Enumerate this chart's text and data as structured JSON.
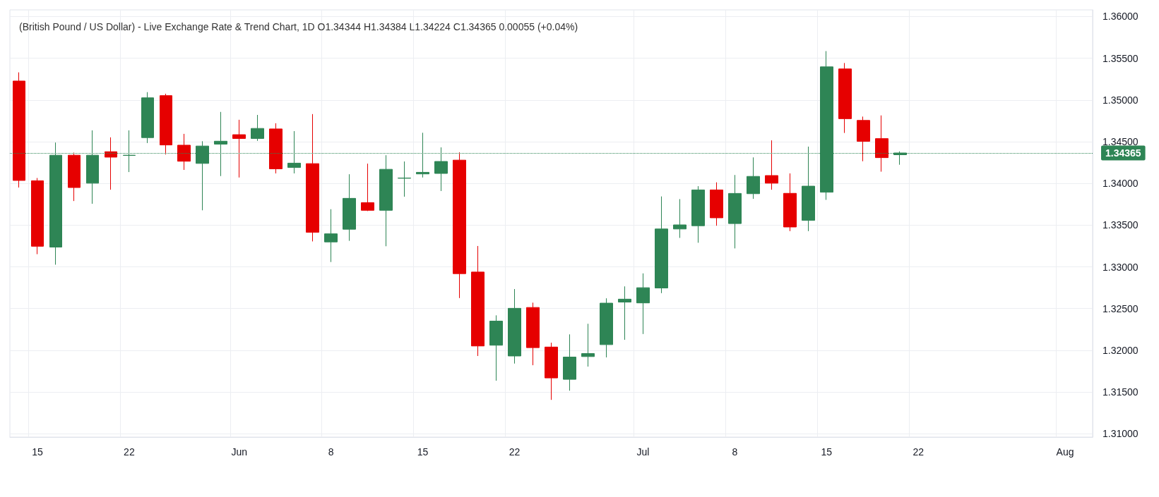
{
  "chart_data": {
    "type": "candlestick",
    "title": "(British Pound / US Dollar) - Live Exchange Rate & Trend Chart, 1D O1.34344 H1.34384 L1.34224 C1.34365 0.00055 (+0.04%)",
    "categories": [
      null,
      "15",
      null,
      null,
      null,
      null,
      "22",
      null,
      null,
      null,
      null,
      null,
      "Jun",
      null,
      null,
      null,
      null,
      "8",
      null,
      null,
      null,
      null,
      "15",
      null,
      null,
      null,
      null,
      "22",
      null,
      null,
      null,
      null,
      null,
      null,
      "Jul",
      null,
      null,
      null,
      null,
      "8",
      null,
      null,
      null,
      null,
      "15",
      null,
      null,
      null,
      null,
      "22",
      null,
      null,
      null,
      null,
      null,
      null,
      null,
      "Aug",
      null
    ],
    "ohlc": [
      [
        1.35227,
        1.35331,
        1.33951,
        1.34036
      ],
      [
        1.34032,
        1.34065,
        1.33152,
        1.33247
      ],
      [
        1.33237,
        1.3449,
        1.33026,
        1.34338
      ],
      [
        1.34338,
        1.3437,
        1.33789,
        1.33951
      ],
      [
        1.34003,
        1.34636,
        1.33756,
        1.34338
      ],
      [
        1.3438,
        1.34552,
        1.33925,
        1.34315
      ],
      [
        1.34335,
        1.34636,
        1.34136,
        1.34338
      ],
      [
        1.34549,
        1.35094,
        1.34484,
        1.35026
      ],
      [
        1.35052,
        1.35075,
        1.34347,
        1.34461
      ],
      [
        1.34458,
        1.34594,
        1.34162,
        1.34266
      ],
      [
        1.3424,
        1.34506,
        1.33678,
        1.34448
      ],
      [
        1.34471,
        1.34857,
        1.34088,
        1.34506
      ],
      [
        1.34584,
        1.34763,
        1.34071,
        1.34539
      ],
      [
        1.34539,
        1.34821,
        1.3451,
        1.34659
      ],
      [
        1.34653,
        1.34721,
        1.3412,
        1.34175
      ],
      [
        1.34191,
        1.34627,
        1.3412,
        1.34243
      ],
      [
        1.34237,
        1.34831,
        1.33305,
        1.33415
      ],
      [
        1.33299,
        1.33691,
        1.33058,
        1.33396
      ],
      [
        1.33451,
        1.3411,
        1.33312,
        1.33821
      ],
      [
        1.33769,
        1.34237,
        1.33669,
        1.33678
      ],
      [
        1.33678,
        1.34338,
        1.33247,
        1.34169
      ],
      [
        1.34062,
        1.34263,
        1.33841,
        1.34065
      ],
      [
        1.34114,
        1.34607,
        1.34071,
        1.34133
      ],
      [
        1.3412,
        1.34432,
        1.33909,
        1.34263
      ],
      [
        1.34279,
        1.34373,
        1.32626,
        1.32919
      ],
      [
        1.32938,
        1.3325,
        1.31932,
        1.32052
      ],
      [
        1.32061,
        1.32419,
        1.31636,
        1.3235
      ],
      [
        1.31932,
        1.32734,
        1.31841,
        1.32503
      ],
      [
        1.32513,
        1.32571,
        1.31821,
        1.32032
      ],
      [
        1.32039,
        1.32091,
        1.31406,
        1.31669
      ],
      [
        1.31652,
        1.32191,
        1.31516,
        1.31919
      ],
      [
        1.31925,
        1.32318,
        1.31805,
        1.31961
      ],
      [
        1.32068,
        1.32623,
        1.31915,
        1.32565
      ],
      [
        1.32578,
        1.32766,
        1.32126,
        1.32613
      ],
      [
        1.32568,
        1.32922,
        1.32195,
        1.3275
      ],
      [
        1.32747,
        1.33844,
        1.32685,
        1.33454
      ],
      [
        1.33454,
        1.33812,
        1.33347,
        1.33503
      ],
      [
        1.33493,
        1.33967,
        1.33289,
        1.33922
      ],
      [
        1.33922,
        1.34013,
        1.33493,
        1.33588
      ],
      [
        1.33519,
        1.34101,
        1.33221,
        1.3388
      ],
      [
        1.33877,
        1.34312,
        1.33815,
        1.34084
      ],
      [
        1.34094,
        1.34516,
        1.33925,
        1.34003
      ],
      [
        1.33881,
        1.3412,
        1.33428,
        1.33478
      ],
      [
        1.33557,
        1.34441,
        1.33428,
        1.33967
      ],
      [
        1.33895,
        1.35586,
        1.33803,
        1.35397
      ],
      [
        1.35372,
        1.35443,
        1.34605,
        1.34776
      ],
      [
        1.34755,
        1.34801,
        1.34266,
        1.34505
      ],
      [
        1.34537,
        1.34815,
        1.34141,
        1.34309
      ],
      [
        1.34344,
        1.34384,
        1.34224,
        1.34365
      ],
      null,
      null,
      null,
      null,
      null,
      null,
      null,
      null,
      null,
      null
    ],
    "colors": [
      "#e60000",
      "#e60000",
      "#2e8555",
      "#e60000",
      "#2e8555",
      "#e60000",
      "#2e8555",
      "#2e8555",
      "#e60000",
      "#e60000",
      "#2e8555",
      "#2e8555",
      "#e60000",
      "#2e8555",
      "#e60000",
      "#2e8555",
      "#e60000",
      "#2e8555",
      "#2e8555",
      "#e60000",
      "#2e8555",
      "#2e8555",
      "#2e8555",
      "#2e8555",
      "#e60000",
      "#e60000",
      "#2e8555",
      "#2e8555",
      "#e60000",
      "#e60000",
      "#2e8555",
      "#2e8555",
      "#2e8555",
      "#2e8555",
      "#2e8555",
      "#2e8555",
      "#2e8555",
      "#2e8555",
      "#e60000",
      "#2e8555",
      "#2e8555",
      "#e60000",
      "#e60000",
      "#2e8555",
      "#2e8555",
      "#e60000",
      "#e60000",
      "#e60000",
      "#2e8555",
      null,
      null,
      null,
      null,
      null,
      null,
      null,
      null,
      null,
      null
    ],
    "ylim": [
      1.3096,
      1.3608
    ],
    "yticks": [
      {
        "value": 1.31,
        "label": "1.31000"
      },
      {
        "value": 1.315,
        "label": "1.31500"
      },
      {
        "value": 1.32,
        "label": "1.32000"
      },
      {
        "value": 1.325,
        "label": "1.32500"
      },
      {
        "value": 1.33,
        "label": "1.33000"
      },
      {
        "value": 1.335,
        "label": "1.33500"
      },
      {
        "value": 1.34,
        "label": "1.34000"
      },
      {
        "value": 1.345,
        "label": "1.34500"
      },
      {
        "value": 1.35,
        "label": "1.35000"
      },
      {
        "value": 1.355,
        "label": "1.35500"
      },
      {
        "value": 1.36,
        "label": "1.36000"
      }
    ],
    "ref_lines": [
      {
        "axis": "y",
        "value": 1.34365,
        "label": "1.34365",
        "color": "#2e8555",
        "line_style": "dotted"
      }
    ],
    "grid": true
  }
}
